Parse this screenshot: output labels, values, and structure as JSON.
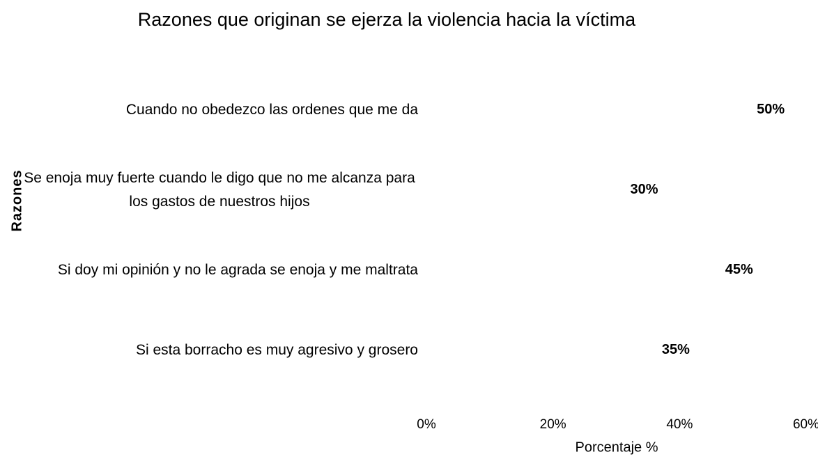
{
  "chart_data": {
    "type": "bar",
    "orientation": "horizontal",
    "title": "Razones que originan se ejerza la violencia hacia la víctima",
    "xlabel": "Porcentaje %",
    "ylabel": "Razones",
    "categories": [
      "Cuando no obedezco las ordenes que me da",
      "Se enoja muy fuerte cuando le digo que no me alcanza para los gastos de nuestros hijos",
      "Si doy mi opinión y no le agrada se enoja y me maltrata",
      "Si esta borracho es muy agresivo y grosero"
    ],
    "values": [
      50,
      30,
      45,
      35
    ],
    "value_labels": [
      "50%",
      "30%",
      "45%",
      "35%"
    ],
    "color": "#ffffff",
    "xlim": [
      0,
      60
    ],
    "xticks": [
      {
        "value": 0,
        "label": "0%"
      },
      {
        "value": 20,
        "label": "20%"
      },
      {
        "value": 40,
        "label": "40%"
      },
      {
        "value": 60,
        "label": "60%"
      }
    ],
    "grid": false
  }
}
